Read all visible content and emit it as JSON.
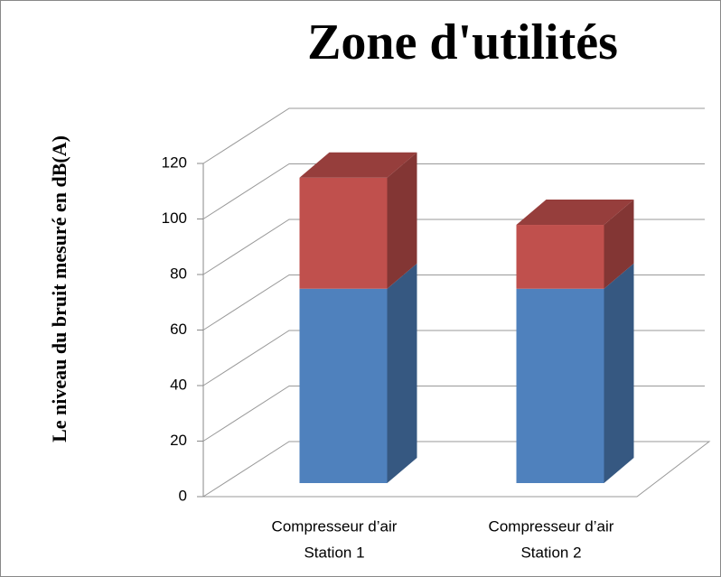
{
  "chart_data": {
    "type": "bar3d_stacked",
    "title": "Zone d'utilités",
    "y_label": "Le niveau du bruit mesuré en dB(A)",
    "categories": [
      [
        "Compresseur d’air",
        "Station 1"
      ],
      [
        "Compresseur d’air",
        "Station 2"
      ]
    ],
    "series": [
      {
        "color": "#4f81bd",
        "values": [
          70,
          70
        ]
      },
      {
        "color": "#c0504d",
        "values": [
          40,
          23
        ]
      }
    ],
    "ylim": [
      0,
      120
    ],
    "yticks": [
      0,
      20,
      40,
      60,
      80,
      100,
      120
    ],
    "grid": true
  }
}
